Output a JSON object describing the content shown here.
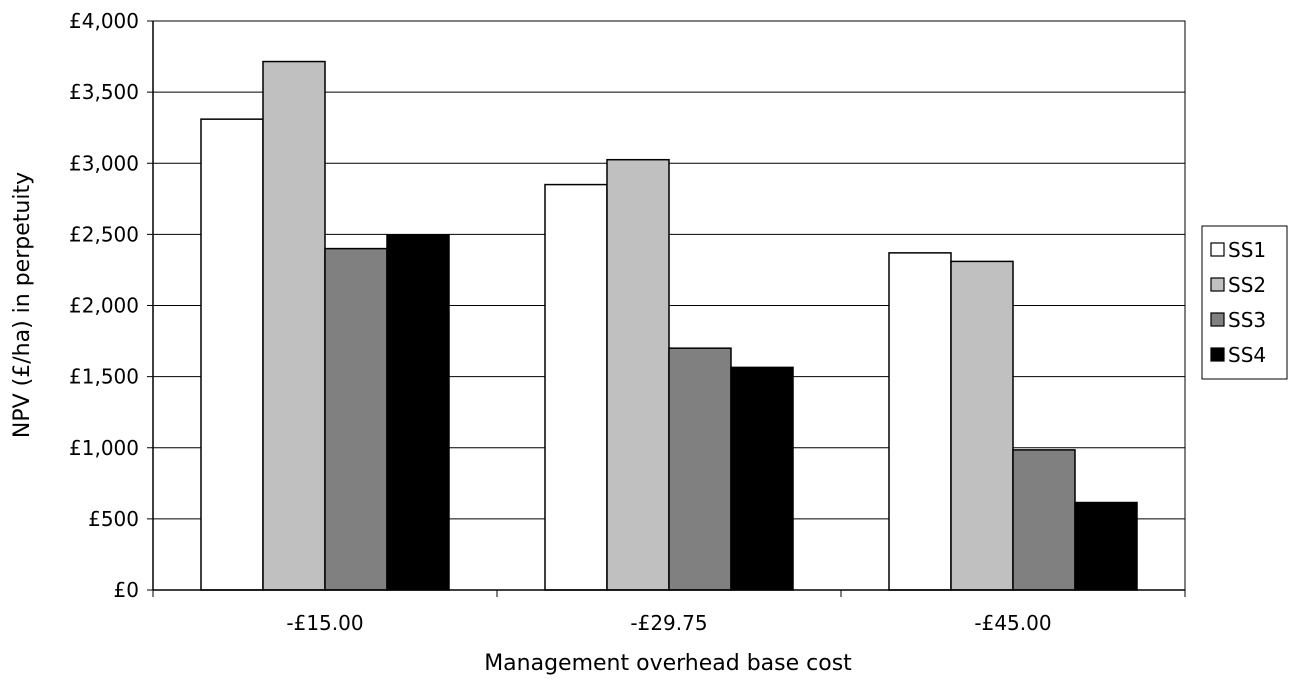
{
  "chart_data": {
    "type": "bar",
    "title": "",
    "xlabel": "Management overhead base cost",
    "ylabel": "NPV (£/ha) in perpetuity",
    "categories": [
      "-£15.00",
      "-£29.75",
      "-£45.00"
    ],
    "ylim": [
      0,
      4000
    ],
    "yticks": [
      0,
      500,
      1000,
      1500,
      2000,
      2500,
      3000,
      3500,
      4000
    ],
    "ytick_labels": [
      "£0",
      "£500",
      "£1,000",
      "£1,500",
      "£2,000",
      "£2,500",
      "£3,000",
      "£3,500",
      "£4,000"
    ],
    "grid": true,
    "legend_position": "right",
    "series": [
      {
        "name": "SS1",
        "color": "#ffffff",
        "values": [
          3310,
          2850,
          2370
        ]
      },
      {
        "name": "SS2",
        "color": "#c0c0c0",
        "values": [
          3715,
          3025,
          2310
        ]
      },
      {
        "name": "SS3",
        "color": "#808080",
        "values": [
          2400,
          1700,
          985
        ]
      },
      {
        "name": "SS4",
        "color": "#000000",
        "values": [
          2495,
          1565,
          615
        ]
      }
    ]
  }
}
